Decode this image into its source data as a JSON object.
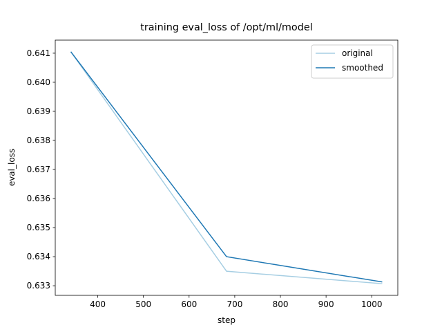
{
  "chart_data": {
    "type": "line",
    "title": "training eval_loss of /opt/ml/model",
    "x_label": "step",
    "y_label": "eval_loss",
    "x": [
      341,
      682,
      1023
    ],
    "series": [
      {
        "name": "original",
        "color": "#a6cee3",
        "values": [
          0.64105,
          0.6335,
          0.63307
        ]
      },
      {
        "name": "smoothed",
        "color": "#1f78b4",
        "values": [
          0.64105,
          0.634,
          0.63313
        ]
      }
    ],
    "xlim": [
      306.9,
      1057.1
    ],
    "xticks": [
      400,
      500,
      600,
      700,
      800,
      900,
      1000
    ],
    "ylim": [
      0.63267,
      0.64145
    ],
    "yticks": [
      {
        "value": 0.633,
        "label": "0.633"
      },
      {
        "value": 0.634,
        "label": "0.634"
      },
      {
        "value": 0.635,
        "label": "0.635"
      },
      {
        "value": 0.636,
        "label": "0.636"
      },
      {
        "value": 0.637,
        "label": "0.637"
      },
      {
        "value": 0.638,
        "label": "0.638"
      },
      {
        "value": 0.639,
        "label": "0.639"
      },
      {
        "value": 0.64,
        "label": "0.640"
      },
      {
        "value": 0.641,
        "label": "0.641"
      }
    ],
    "legend": "upper right",
    "grid": false
  }
}
